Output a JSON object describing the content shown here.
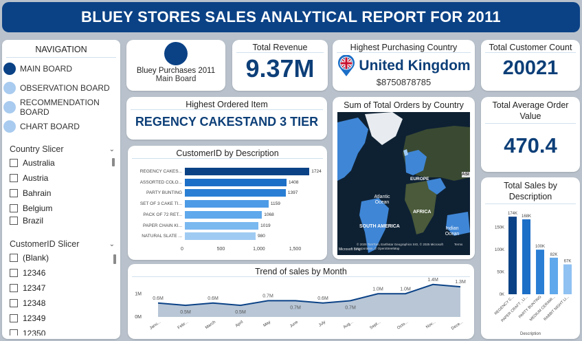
{
  "title": "BLUEY STORES SALES ANALYTICAL REPORT FOR 2011",
  "navigation": {
    "heading": "NAVIGATION",
    "items": [
      {
        "label": "MAIN BOARD",
        "active": true
      },
      {
        "label": "OBSERVATION BOARD",
        "active": false
      },
      {
        "label": "RECOMMENDATION BOARD",
        "active": false
      },
      {
        "label": "CHART BOARD",
        "active": false
      }
    ]
  },
  "country_slicer": {
    "title": "Country Slicer",
    "items": [
      "Australia",
      "Austria",
      "Bahrain",
      "Belgium",
      "Brazil"
    ]
  },
  "customer_slicer": {
    "title": "CustomerID Slicer",
    "items": [
      "(Blank)",
      "12346",
      "12347",
      "12348",
      "12349",
      "12350"
    ]
  },
  "purchases_card": {
    "title": "Bluey Purchases 2011",
    "subtitle": "Main Board"
  },
  "total_revenue": {
    "label": "Total Revenue",
    "value": "9.37M"
  },
  "highest_country": {
    "label": "Highest Purchasing Country",
    "value": "United Kingdom",
    "amount": "$8750878785"
  },
  "total_customers": {
    "label": "Total Customer Count",
    "value": "20021"
  },
  "highest_item": {
    "label": "Highest Ordered Item",
    "value": "REGENCY CAKESTAND 3 TIER"
  },
  "avg_order": {
    "label": "Total Average Order Value",
    "value": "470.4"
  },
  "map": {
    "title": "Sum of Total Orders by Country",
    "labels": {
      "europe": "EUROPE",
      "atlantic": "Atlantic Ocean",
      "south_america": "SOUTH AMERICA",
      "africa": "AFRICA",
      "indian": "Indian Ocean",
      "asia": "ASI"
    },
    "credit": "© 2025 TomTom, Earthstar Geographics SIO, © 2025 Microsoft Corporation, © OpenStreetMap",
    "brand": "Microsoft Bing",
    "terms": "Terms",
    "colors": {
      "ocean": "#0e2133",
      "land": "#2f3a2a",
      "highlight": "#3f86d6"
    }
  },
  "chart_data": [
    {
      "type": "bar",
      "orientation": "horizontal",
      "title": "CustomerID by Description",
      "categories": [
        "REGENCY CAKES...",
        "ASSORTED COLO...",
        "PARTY BUNTING",
        "SET OF 3 CAKE TI...",
        "PACK OF 72 RET...",
        "PAPER CHAIN KI...",
        "NATURAL SLATE ..."
      ],
      "values": [
        1724,
        1408,
        1397,
        1159,
        1068,
        1019,
        980
      ],
      "data_labels": [
        "1724",
        "1408",
        "1397",
        "1159",
        "1068",
        "1019",
        "980"
      ],
      "xlim": [
        0,
        1750
      ],
      "xticks": [
        0,
        500,
        1000,
        1500
      ],
      "xtick_labels": [
        "0",
        "500",
        "1,000",
        "1,500"
      ],
      "colors": [
        "#0b4286",
        "#1c6fc7",
        "#2a7fd4",
        "#4d9be6",
        "#5fa8ec",
        "#7ab8f0",
        "#9fcbf3"
      ]
    },
    {
      "type": "area",
      "title": "Trend of sales by Month",
      "categories": [
        "Janu...",
        "Febr...",
        "March",
        "April",
        "May",
        "June",
        "July",
        "Aug...",
        "Sept...",
        "Octo...",
        "Nov...",
        "Dece..."
      ],
      "values": [
        0.6,
        0.5,
        0.6,
        0.5,
        0.7,
        0.7,
        0.6,
        0.7,
        1.0,
        1.0,
        1.4,
        1.3
      ],
      "data_labels": [
        "0.6M",
        "0.5M",
        "0.6M",
        "0.5M",
        "0.7M",
        "0.7M",
        "0.6M",
        "0.7M",
        "1.0M",
        "1.0M",
        "1.4M",
        "1.3M"
      ],
      "ylim": [
        0,
        1.6
      ],
      "yticks": [
        0,
        1
      ],
      "ytick_labels": [
        "0M",
        "1M"
      ],
      "colors": {
        "line": "#0b4286",
        "fill": "#b8c6d6"
      }
    },
    {
      "type": "bar",
      "orientation": "vertical",
      "title": "Total Sales by Description",
      "xlabel": "Description",
      "categories": [
        "REGENCY C...",
        "PAPER CRAFT , LI...",
        "PARTY BUNTING",
        "MEDIUM CERAMI...",
        "RABBIT NIGHT LI..."
      ],
      "values": [
        174,
        168,
        100,
        82,
        67
      ],
      "data_labels": [
        "174K",
        "168K",
        "100K",
        "82K",
        "67K"
      ],
      "ylim": [
        0,
        185
      ],
      "yticks": [
        0,
        50,
        100,
        150
      ],
      "ytick_labels": [
        "0K",
        "50K",
        "100K",
        "150K"
      ],
      "colors": [
        "#0b4286",
        "#1c6fc7",
        "#2a7fd4",
        "#5fa8ec",
        "#8fc1f2"
      ]
    }
  ]
}
